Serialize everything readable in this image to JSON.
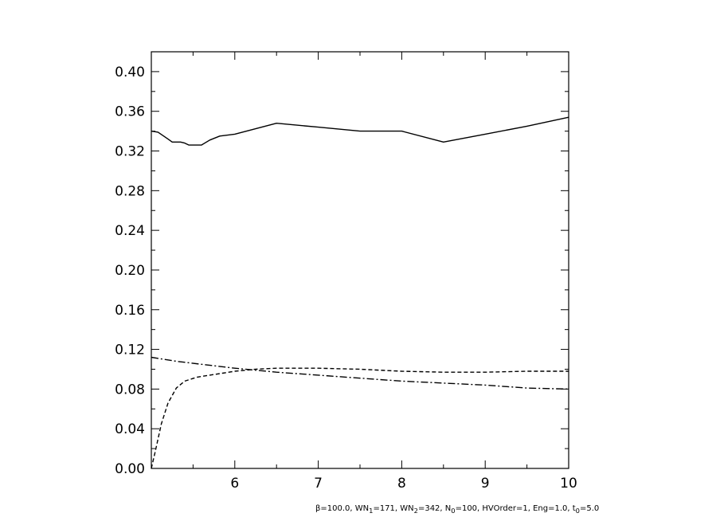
{
  "chart_data": {
    "type": "line",
    "title": "",
    "xlabel": "",
    "ylabel": "",
    "xlim": [
      5.0,
      10.0
    ],
    "ylim": [
      0.0,
      0.42
    ],
    "x_ticks": [
      6,
      7,
      8,
      9,
      10
    ],
    "x_tick_labels": [
      "6",
      "7",
      "8",
      "9",
      "10"
    ],
    "y_ticks": [
      0.0,
      0.04,
      0.08,
      0.12,
      0.16,
      0.2,
      0.24,
      0.28,
      0.32,
      0.36,
      0.4
    ],
    "y_tick_labels": [
      "0.00",
      "0.04",
      "0.08",
      "0.12",
      "0.16",
      "0.20",
      "0.24",
      "0.28",
      "0.32",
      "0.36",
      "0.40"
    ],
    "grid": false,
    "series": [
      {
        "style": "solid",
        "points": [
          [
            5.0,
            0.34
          ],
          [
            5.08,
            0.339
          ],
          [
            5.2,
            0.332
          ],
          [
            5.25,
            0.329
          ],
          [
            5.35,
            0.329
          ],
          [
            5.4,
            0.328
          ],
          [
            5.45,
            0.326
          ],
          [
            5.6,
            0.326
          ],
          [
            5.7,
            0.331
          ],
          [
            5.82,
            0.335
          ],
          [
            6.0,
            0.337
          ],
          [
            6.5,
            0.348
          ],
          [
            7.0,
            0.344
          ],
          [
            7.5,
            0.34
          ],
          [
            8.0,
            0.34
          ],
          [
            8.5,
            0.329
          ],
          [
            9.0,
            0.337
          ],
          [
            9.5,
            0.345
          ],
          [
            10.0,
            0.354
          ]
        ]
      },
      {
        "style": "dashed",
        "points": [
          [
            5.0,
            0.0
          ],
          [
            5.05,
            0.018
          ],
          [
            5.12,
            0.045
          ],
          [
            5.2,
            0.066
          ],
          [
            5.3,
            0.081
          ],
          [
            5.4,
            0.088
          ],
          [
            5.55,
            0.092
          ],
          [
            5.7,
            0.094
          ],
          [
            5.85,
            0.096
          ],
          [
            6.0,
            0.098
          ],
          [
            6.25,
            0.1
          ],
          [
            6.5,
            0.101
          ],
          [
            7.0,
            0.101
          ],
          [
            7.5,
            0.1
          ],
          [
            8.0,
            0.098
          ],
          [
            8.5,
            0.097
          ],
          [
            9.0,
            0.097
          ],
          [
            9.5,
            0.098
          ],
          [
            10.0,
            0.098
          ]
        ]
      },
      {
        "style": "dashdot",
        "points": [
          [
            5.0,
            0.112
          ],
          [
            5.3,
            0.108
          ],
          [
            5.6,
            0.105
          ],
          [
            6.0,
            0.101
          ],
          [
            6.5,
            0.097
          ],
          [
            7.0,
            0.094
          ],
          [
            7.5,
            0.091
          ],
          [
            8.0,
            0.088
          ],
          [
            8.5,
            0.086
          ],
          [
            9.0,
            0.084
          ],
          [
            9.5,
            0.081
          ],
          [
            10.0,
            0.08
          ]
        ]
      }
    ]
  },
  "footer": {
    "beta_symbol": "β",
    "text_a": "=100.0, WN",
    "sub_1": "1",
    "text_b": "=171, WN",
    "sub_2": "2",
    "text_c": "=342, N",
    "sub_0": "0",
    "text_d": "=100, HVOrder=1, Eng=1.0, t",
    "sub_t": "0",
    "text_e": "=5.0"
  }
}
